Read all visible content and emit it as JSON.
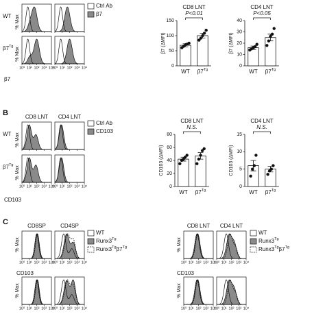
{
  "panel_labels": [
    "B",
    "C"
  ],
  "flow": [
    {
      "rows": [
        [
          "WT"
        ],
        [
          "β7",
          "Tg"
        ]
      ],
      "y_label": "% Max",
      "x_label": "β7",
      "x_ticks": [
        "10⁰",
        "10¹",
        "10²",
        "10³",
        "10⁴"
      ],
      "legend": [
        [
          "Ctrl Ab"
        ],
        [
          "β7"
        ]
      ]
    },
    {
      "columns": [
        "CD8 LNT",
        "CD4 LNT"
      ],
      "rows": [
        [
          "WT"
        ],
        [
          "β7",
          "Tg"
        ]
      ],
      "y_label": "% Max",
      "x_label": "CD103",
      "x_ticks": [
        "10⁰",
        "10¹",
        "10²",
        "10³",
        "10⁴"
      ],
      "legend": [
        [
          "Ctrl Ab"
        ],
        [
          "CD103"
        ]
      ]
    },
    {
      "columns": [
        "CD8SP",
        "CD4SP"
      ],
      "y_label": "% Max",
      "x_label": "CD103",
      "x_ticks": [
        "10⁰",
        "10¹",
        "10²",
        "10³",
        "10⁴"
      ],
      "legend": [
        [
          "WT"
        ],
        [
          "Runx3",
          "Tg"
        ],
        [
          "Runx3",
          "Tg",
          "β7",
          "Tg"
        ]
      ]
    },
    {
      "columns": [
        "CD8 LNT",
        "CD4 LNT"
      ],
      "y_label": "% Max",
      "x_label": "CD103",
      "x_ticks": [
        "10⁰",
        "10¹",
        "10²",
        "10³",
        "10⁴"
      ],
      "legend": [
        [
          "WT"
        ],
        [
          "Runx3",
          "Tg"
        ],
        [
          "Runx3",
          "Tg",
          "β7",
          "Tg"
        ]
      ]
    }
  ],
  "chart_data": [
    {
      "type": "bar",
      "title": "CD8 LNT",
      "y_label": "β7 (ΔMFI)",
      "categories": [
        [
          "WT"
        ],
        [
          "β7",
          "Tg"
        ]
      ],
      "values": [
        68,
        100
      ],
      "errors": [
        5,
        8
      ],
      "points": [
        [
          60,
          65,
          70,
          72,
          75
        ],
        [
          85,
          92,
          100,
          108,
          118
        ]
      ],
      "annotation": "P<0.01",
      "ylim": [
        0,
        150
      ],
      "yticks": [
        0,
        50,
        100,
        150
      ]
    },
    {
      "type": "bar",
      "title": "CD4 LNT",
      "y_label": "β7 (ΔMFI)",
      "categories": [
        [
          "WT"
        ],
        [
          "β7",
          "Tg"
        ]
      ],
      "values": [
        16,
        25
      ],
      "errors": [
        1.5,
        3
      ],
      "points": [
        [
          14,
          15,
          16,
          17,
          19
        ],
        [
          18,
          22,
          26,
          28,
          33
        ]
      ],
      "annotation": "P<0.05",
      "ylim": [
        0,
        40
      ],
      "yticks": [
        0,
        10,
        20,
        30,
        40
      ]
    },
    {
      "type": "bar",
      "title": "CD8 LNT",
      "y_label": "CD103 (ΔMFI)",
      "categories": [
        [
          "WT"
        ],
        [
          "β7",
          "Tg"
        ]
      ],
      "values": [
        42,
        47
      ],
      "errors": [
        3,
        5
      ],
      "points": [
        [
          35,
          40,
          42,
          45,
          48
        ],
        [
          35,
          42,
          48,
          55,
          58
        ]
      ],
      "annotation": "N.S.",
      "ylim": [
        0,
        80
      ],
      "yticks": [
        0,
        20,
        40,
        60,
        80
      ]
    },
    {
      "type": "bar",
      "title": "CD4 LNT",
      "y_label": "CD103 (ΔMFI)",
      "categories": [
        [
          "WT"
        ],
        [
          "β7",
          "Tg"
        ]
      ],
      "values": [
        6,
        5
      ],
      "errors": [
        1.5,
        0.8
      ],
      "points": [
        [
          3,
          5,
          6,
          9
        ],
        [
          3.5,
          4.5,
          5,
          6
        ]
      ],
      "annotation": "N.S.",
      "ylim": [
        0,
        15
      ],
      "yticks": [
        0,
        5,
        10,
        15
      ]
    }
  ]
}
